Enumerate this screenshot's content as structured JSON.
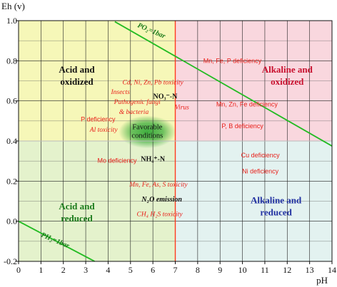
{
  "chart_data": {
    "type": "area",
    "xlabel": "pH",
    "ylabel": "Eh (v)",
    "xlim": [
      0,
      14
    ],
    "ylim": [
      -0.2,
      1.0
    ],
    "grid": true,
    "x_ticks": [
      "0",
      "1",
      "2",
      "3",
      "4",
      "5",
      "6",
      "7",
      "8",
      "9",
      "10",
      "11",
      "12",
      "13",
      "14"
    ],
    "y_ticks": [
      {
        "value": 1.0,
        "label": "1.0"
      },
      {
        "value": 0.8,
        "label": "0.8"
      },
      {
        "value": 0.6,
        "label": "0.6"
      },
      {
        "value": 0.4,
        "label": "0.4"
      },
      {
        "value": 0.2,
        "label": "0.2"
      },
      {
        "value": 0.0,
        "label": "0.0"
      },
      {
        "value": -0.2,
        "label": "-0.2"
      }
    ],
    "divider_ph": 7,
    "divider_eh": 0.4,
    "zones": [
      {
        "name": "acid-oxidized",
        "x": [
          0,
          7
        ],
        "y": [
          0.4,
          1.0
        ],
        "color": "#f6f7b8",
        "label": "Acid and oxidized",
        "label_color": "#111111",
        "label_pos": [
          2.6,
          0.74
        ]
      },
      {
        "name": "alkaline-oxidized",
        "x": [
          7,
          14
        ],
        "y": [
          0.4,
          1.0
        ],
        "color": "#f9d7de",
        "label": "Alkaline and oxidized",
        "label_color": "#c8102e",
        "label_pos": [
          12.0,
          0.74
        ]
      },
      {
        "name": "acid-reduced",
        "x": [
          0,
          7
        ],
        "y": [
          -0.2,
          0.4
        ],
        "color": "#e4f2cc",
        "label": "Acid and reduced",
        "label_color": "#1a7a1a",
        "label_pos": [
          2.6,
          0.06
        ]
      },
      {
        "name": "alkaline-reduced",
        "x": [
          7,
          14
        ],
        "y": [
          -0.2,
          0.4
        ],
        "color": "#e3f2f0",
        "label": "Alkaline and reduced",
        "label_color": "#1f2fa0",
        "label_pos": [
          11.5,
          0.09
        ]
      }
    ],
    "boundary_lines": [
      {
        "name": "po2-line",
        "label": "PO₂=1bar",
        "x": [
          4.3,
          14.0
        ],
        "y": [
          0.995,
          0.375
        ],
        "color": "#22bb22",
        "label_pos": [
          5.9,
          0.94
        ],
        "label_rotate": 23
      },
      {
        "name": "ph2-line",
        "label": "PH₂=1bar",
        "x": [
          0.0,
          3.4
        ],
        "y": [
          0.0,
          -0.2
        ],
        "color": "#22bb22",
        "label_pos": [
          1.6,
          -0.105
        ],
        "label_rotate": 23
      }
    ],
    "favorable": {
      "label": [
        "Favorable",
        "conditions"
      ],
      "center": [
        5.75,
        0.445
      ],
      "color": "#3fae3f"
    },
    "annotations": [
      {
        "text": "Mn, Fe, P deficiency",
        "x": 9.55,
        "y": 0.788,
        "color": "#e8201a",
        "style": "sans"
      },
      {
        "text": "Cd, Ni, Zn, Pb toxicity",
        "x": 6.0,
        "y": 0.683,
        "color": "#e8201a",
        "style": "italic"
      },
      {
        "text": "Insects",
        "x": 4.55,
        "y": 0.635,
        "color": "#e8201a",
        "style": "italic"
      },
      {
        "text": "Pathogenic fungi",
        "x": 5.3,
        "y": 0.585,
        "color": "#e8201a",
        "style": "italic"
      },
      {
        "text": "& bacteria",
        "x": 5.15,
        "y": 0.535,
        "color": "#e8201a",
        "style": "italic"
      },
      {
        "text": "Virus",
        "x": 7.3,
        "y": 0.558,
        "color": "#e8201a",
        "style": "italic"
      },
      {
        "text": "Mn, Zn, Fe deficiency",
        "x": 10.2,
        "y": 0.573,
        "color": "#e8201a",
        "style": "sans"
      },
      {
        "text": "P deficiency",
        "x": 3.55,
        "y": 0.497,
        "color": "#e8201a",
        "style": "sans"
      },
      {
        "text": "Al toxicity",
        "x": 3.8,
        "y": 0.447,
        "color": "#e8201a",
        "style": "italic"
      },
      {
        "text": "P, B deficiency",
        "x": 10.0,
        "y": 0.464,
        "color": "#e8201a",
        "style": "sans"
      },
      {
        "text": "Cu deficiency",
        "x": 10.8,
        "y": 0.318,
        "color": "#e8201a",
        "style": "sans"
      },
      {
        "text": "Mo deficiency",
        "x": 4.4,
        "y": 0.292,
        "color": "#e8201a",
        "style": "sans"
      },
      {
        "text": "Ni deficiency",
        "x": 10.8,
        "y": 0.238,
        "color": "#e8201a",
        "style": "sans"
      },
      {
        "text": "Mn, Fe, As, S toxicity",
        "x": 6.25,
        "y": 0.173,
        "color": "#e8201a",
        "style": "italic"
      },
      {
        "text": "CH₄ H₂S toxicity",
        "x": 6.3,
        "y": 0.025,
        "color": "#e8201a",
        "style": "italic"
      }
    ],
    "species": [
      {
        "text": "NO₃⁻-N",
        "x": 6.55,
        "y": 0.612,
        "color": "#111111"
      },
      {
        "text": "NH₄⁺-N",
        "x": 6.0,
        "y": 0.298,
        "color": "#111111"
      },
      {
        "text": "N₂O emission",
        "x": 6.4,
        "y": 0.098,
        "color": "#111111"
      }
    ]
  }
}
